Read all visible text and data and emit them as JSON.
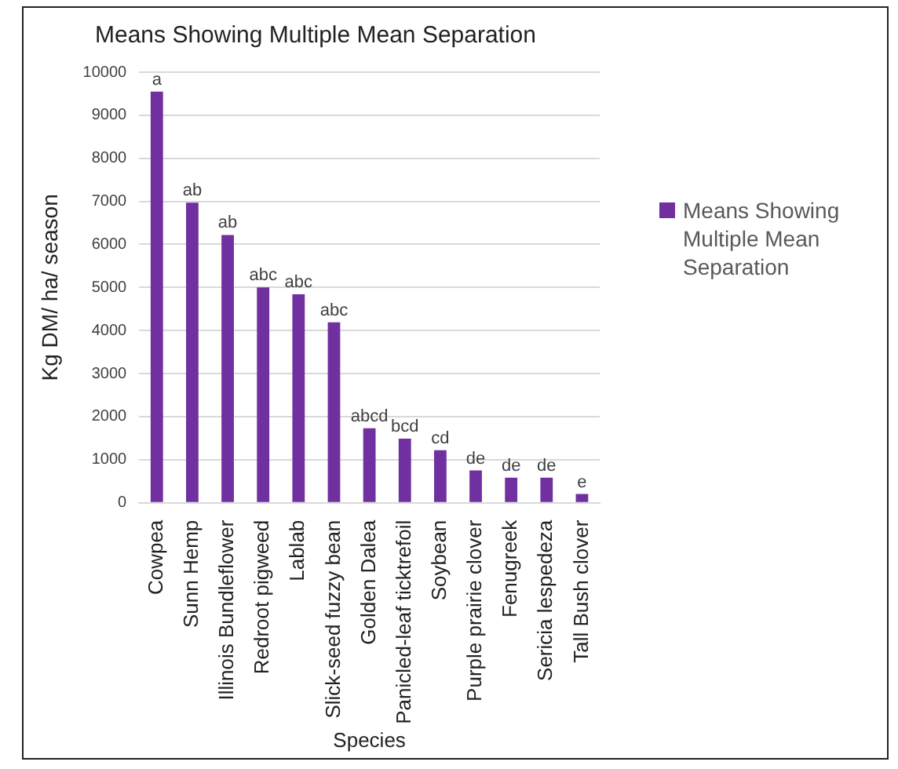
{
  "chart_data": {
    "type": "bar",
    "title": "Means Showing Multiple Mean Separation",
    "xlabel": "Species",
    "ylabel": "Kg DM/ ha/ season",
    "categories": [
      "Cowpea",
      "Sunn Hemp",
      "Illinois Bundleflower",
      "Redroot pigweed",
      "Lablab",
      "Slick-seed fuzzy bean",
      "Golden Dalea",
      "Panicled-leaf ticktrefoil",
      "Soybean",
      "Purple prairie clover",
      "Fenugreek",
      "Sericia lespedeza",
      "Tall Bush clover"
    ],
    "series": [
      {
        "name": "Means Showing Multiple Mean Separation",
        "color": "#7030a0",
        "values": [
          9550,
          6970,
          6220,
          5000,
          4840,
          4190,
          1730,
          1490,
          1220,
          750,
          580,
          580,
          205
        ],
        "value_labels": [
          "a",
          "ab",
          "ab",
          "abc",
          "abc",
          "abc",
          "abcd",
          "bcd",
          "cd",
          "de",
          "de",
          "de",
          "e"
        ]
      }
    ],
    "ylim": [
      0,
      10000
    ],
    "yticks": [
      0,
      1000,
      2000,
      3000,
      4000,
      5000,
      6000,
      7000,
      8000,
      9000,
      10000
    ],
    "grid": "y",
    "legend": "right"
  }
}
